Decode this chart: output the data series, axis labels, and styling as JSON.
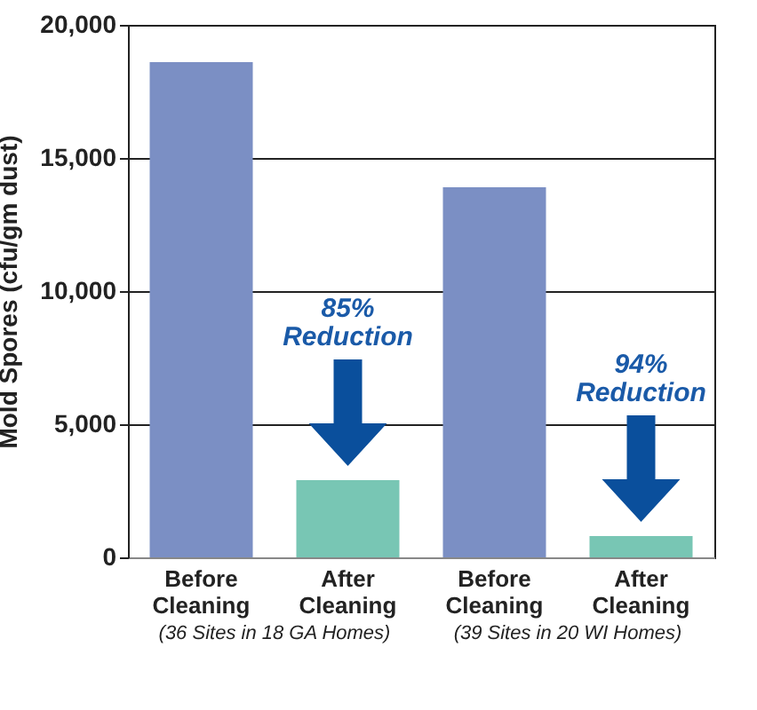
{
  "chart_data": {
    "type": "bar",
    "ylabel": "Mold Spores (cfu/gm dust)",
    "categories": [
      "Before Cleaning",
      "After Cleaning",
      "Before Cleaning",
      "After Cleaning"
    ],
    "values": [
      18600,
      2900,
      13900,
      800
    ],
    "colors": [
      "#7b8fc4",
      "#78c6b4",
      "#7b8fc4",
      "#78c6b4"
    ],
    "ylim": [
      0,
      20000
    ],
    "yticks": [
      {
        "value": 0,
        "label": "0"
      },
      {
        "value": 5000,
        "label": "5,000"
      },
      {
        "value": 10000,
        "label": "10,000"
      },
      {
        "value": 15000,
        "label": "15,000"
      },
      {
        "value": 20000,
        "label": "20,000"
      }
    ],
    "grid": "y",
    "annotations": [
      "85% Reduction",
      "94% Reduction",
      "(36 Sites in 18 GA Homes)",
      "(39 Sites in 20 WI Homes)"
    ]
  }
}
